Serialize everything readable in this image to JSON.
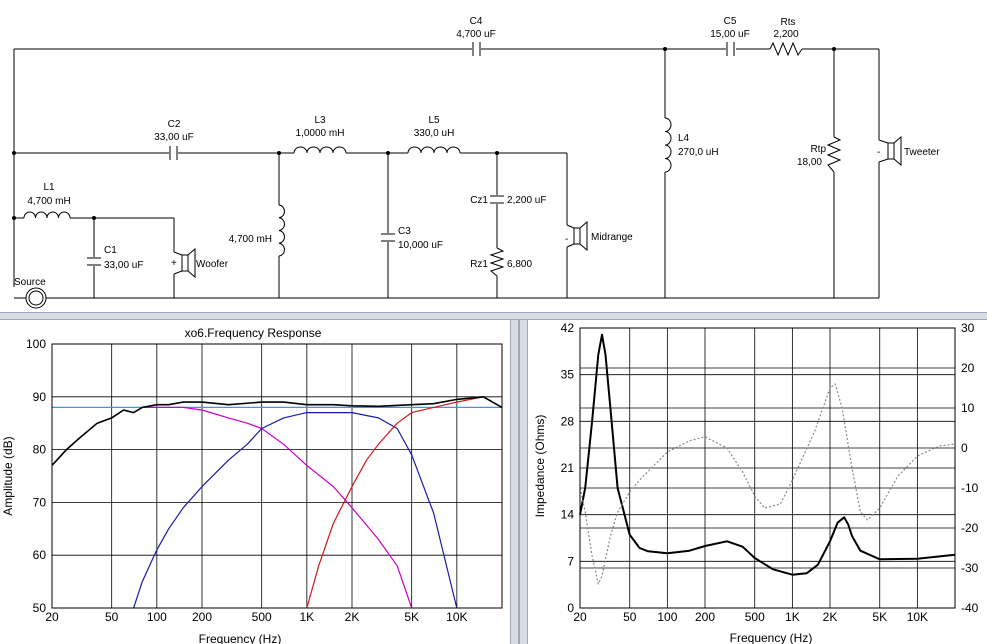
{
  "schematic": {
    "components": {
      "C4": {
        "name": "C4",
        "value": "4,700 uF"
      },
      "C5": {
        "name": "C5",
        "value": "15,00 uF"
      },
      "Rts": {
        "name": "Rts",
        "value": "2,200"
      },
      "C2": {
        "name": "C2",
        "value": "33,00 uF"
      },
      "L3": {
        "name": "L3",
        "value": "1,0000 mH"
      },
      "L5": {
        "name": "L5",
        "value": "330,0 uH"
      },
      "L4": {
        "name": "L4",
        "value": "270,0 uH"
      },
      "Rtp": {
        "name": "Rtp",
        "value": "18,00"
      },
      "L1": {
        "name": "L1",
        "value": "4,700 mH"
      },
      "C1": {
        "name": "C1",
        "value": "33,00 uF"
      },
      "L2": {
        "value": "4,700 mH"
      },
      "C3": {
        "name": "C3",
        "value": "10,000 uF"
      },
      "Cz1": {
        "name": "Cz1",
        "value": "2,200 uF"
      },
      "Rz1": {
        "name": "Rz1",
        "value": "6,800"
      }
    },
    "speakers": {
      "woofer": "Woofer",
      "midrange": "Midrange",
      "tweeter": "Tweeter"
    },
    "source": "Source",
    "polarity": {
      "plus": "+",
      "minus": "-"
    }
  },
  "chart_data": [
    {
      "type": "line",
      "title": "xo6.Frequency Response",
      "xlabel": "Frequency (Hz)",
      "ylabel": "Amplitude (dB)",
      "x_scale": "log",
      "xlim": [
        20,
        20000
      ],
      "ylim": [
        50,
        100
      ],
      "x_ticks": [
        20,
        50,
        100,
        200,
        500,
        1000,
        2000,
        5000,
        10000
      ],
      "x_tick_labels": [
        "20",
        "50",
        "100",
        "200",
        "500",
        "1K",
        "2K",
        "5K",
        "10K"
      ],
      "y_ticks": [
        50,
        60,
        70,
        80,
        90,
        100
      ],
      "y_tick_labels": [
        "50",
        "60",
        "70",
        "80",
        "90",
        "100"
      ],
      "grid": true,
      "reference_line": {
        "y": 88,
        "color": "#3a9ec8"
      },
      "series": [
        {
          "color": "#cc00cc",
          "x": [
            20,
            25,
            30,
            40,
            50,
            60,
            70,
            80,
            100,
            120,
            150,
            200,
            300,
            400,
            500,
            700,
            1000,
            1500,
            2000,
            3000,
            4000,
            5000
          ],
          "y": [
            77,
            80,
            82,
            85,
            86,
            87.5,
            87,
            88,
            88,
            88,
            88,
            87.5,
            86,
            85,
            84,
            81,
            77,
            73,
            69,
            63,
            58,
            50
          ]
        },
        {
          "color": "#1a1aaa",
          "x": [
            70,
            80,
            100,
            120,
            150,
            200,
            300,
            400,
            500,
            700,
            1000,
            1500,
            2000,
            3000,
            4000,
            5000,
            7000,
            10000
          ],
          "y": [
            50,
            55,
            61,
            65,
            69,
            73,
            78,
            81,
            84,
            86,
            87,
            87,
            87,
            86,
            84,
            79,
            68,
            50
          ]
        },
        {
          "color": "#cc1a1a",
          "x": [
            1000,
            1200,
            1500,
            2000,
            2500,
            3000,
            4000,
            5000,
            7000,
            10000,
            15000,
            20000
          ],
          "y": [
            50,
            58,
            66,
            73,
            78,
            81,
            85,
            87,
            88,
            89,
            90,
            88
          ]
        },
        {
          "color": "#000000",
          "x": [
            20,
            25,
            30,
            40,
            50,
            60,
            70,
            80,
            100,
            120,
            150,
            200,
            300,
            500,
            700,
            1000,
            1500,
            2000,
            3000,
            5000,
            7000,
            10000,
            15000,
            20000
          ],
          "y": [
            77,
            80,
            82,
            85,
            86,
            87.5,
            87,
            88,
            88.5,
            88.5,
            89,
            89,
            88.5,
            89,
            89,
            88.5,
            88.5,
            88.3,
            88.2,
            88.5,
            88.7,
            89.5,
            90,
            88
          ]
        }
      ]
    },
    {
      "type": "line",
      "title": "",
      "xlabel": "Frequency (Hz)",
      "ylabel": "Impedance (Ohms)",
      "x_scale": "log",
      "xlim": [
        20,
        20000
      ],
      "ylim": [
        0,
        42
      ],
      "y2lim": [
        -40,
        30
      ],
      "x_ticks": [
        20,
        50,
        100,
        200,
        500,
        1000,
        2000,
        5000,
        10000
      ],
      "x_tick_labels": [
        "20",
        "50",
        "100",
        "200",
        "500",
        "1K",
        "2K",
        "5K",
        "10K"
      ],
      "y_ticks": [
        0,
        7,
        14,
        21,
        28,
        35,
        42
      ],
      "y_tick_labels": [
        "0",
        "7",
        "14",
        "21",
        "28",
        "35",
        "42"
      ],
      "y2_ticks": [
        -40,
        -30,
        -20,
        -10,
        0,
        10,
        20,
        30
      ],
      "y2_tick_labels": [
        "-40",
        "-30",
        "-20",
        "-10",
        "0",
        "10",
        "20",
        "30"
      ],
      "grid": true,
      "series": [
        {
          "axis": "left",
          "style": "solid",
          "color": "#000000",
          "x": [
            20,
            22,
            25,
            28,
            30,
            32,
            35,
            40,
            50,
            60,
            70,
            100,
            150,
            200,
            300,
            400,
            500,
            700,
            1000,
            1300,
            1600,
            2000,
            2300,
            2600,
            2800,
            3000,
            3500,
            5000,
            10000,
            20000
          ],
          "y": [
            14,
            18,
            28,
            38,
            41,
            38,
            30,
            18,
            11,
            9,
            8.5,
            8.2,
            8.6,
            9.3,
            10,
            9.2,
            7.5,
            5.8,
            5,
            5.2,
            6.5,
            10,
            12.8,
            13.6,
            12.5,
            10.8,
            8.6,
            7.3,
            7.4,
            8
          ]
        },
        {
          "axis": "right",
          "style": "dashed",
          "color": "#888888",
          "x": [
            20,
            22,
            25,
            28,
            30,
            35,
            40,
            50,
            60,
            80,
            100,
            150,
            200,
            300,
            400,
            500,
            600,
            800,
            1000,
            1500,
            2000,
            2200,
            2500,
            3000,
            3500,
            4000,
            5000,
            7000,
            10000,
            15000,
            20000
          ],
          "y": [
            -10,
            -16,
            -27,
            -34,
            -32,
            -22,
            -16,
            -11,
            -8,
            -4,
            -1,
            1.8,
            2.8,
            0,
            -6,
            -12,
            -15,
            -14,
            -8,
            4,
            15,
            16,
            10,
            -5,
            -16,
            -18,
            -15,
            -7,
            -2,
            0.5,
            1
          ]
        }
      ]
    }
  ]
}
